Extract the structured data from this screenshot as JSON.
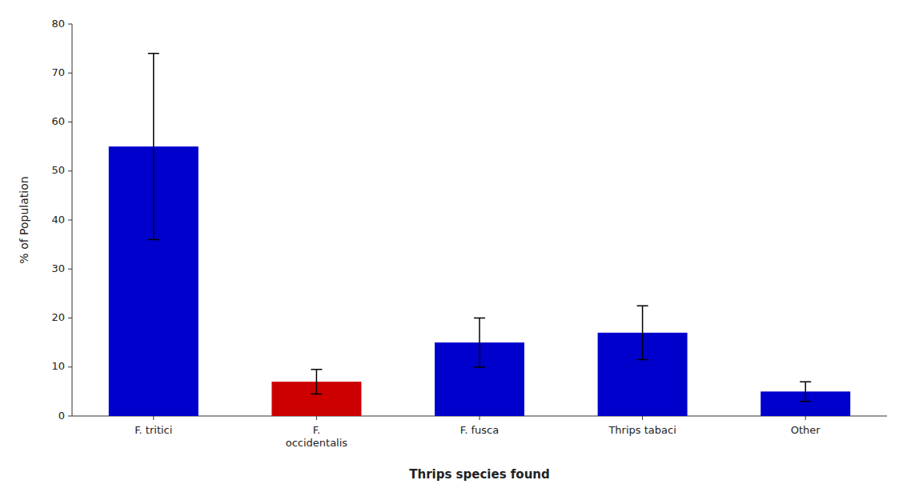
{
  "chart_data": {
    "type": "bar",
    "categories": [
      "F. tritici",
      "F.\noccidentalis",
      "F. fusca",
      "Thrips tabaci",
      "Other"
    ],
    "values": [
      55,
      7,
      15,
      17,
      5
    ],
    "errors": [
      19,
      2.5,
      5,
      5.5,
      2
    ],
    "colors": [
      "#0000CC",
      "#CC0000",
      "#0000CC",
      "#0000CC",
      "#0000CC"
    ],
    "xlabel": "Thrips species found",
    "ylabel": "% of Population",
    "ylim": [
      0,
      80
    ],
    "yticks": [
      0,
      10,
      20,
      30,
      40,
      50,
      60,
      70,
      80
    ],
    "grid": false
  }
}
